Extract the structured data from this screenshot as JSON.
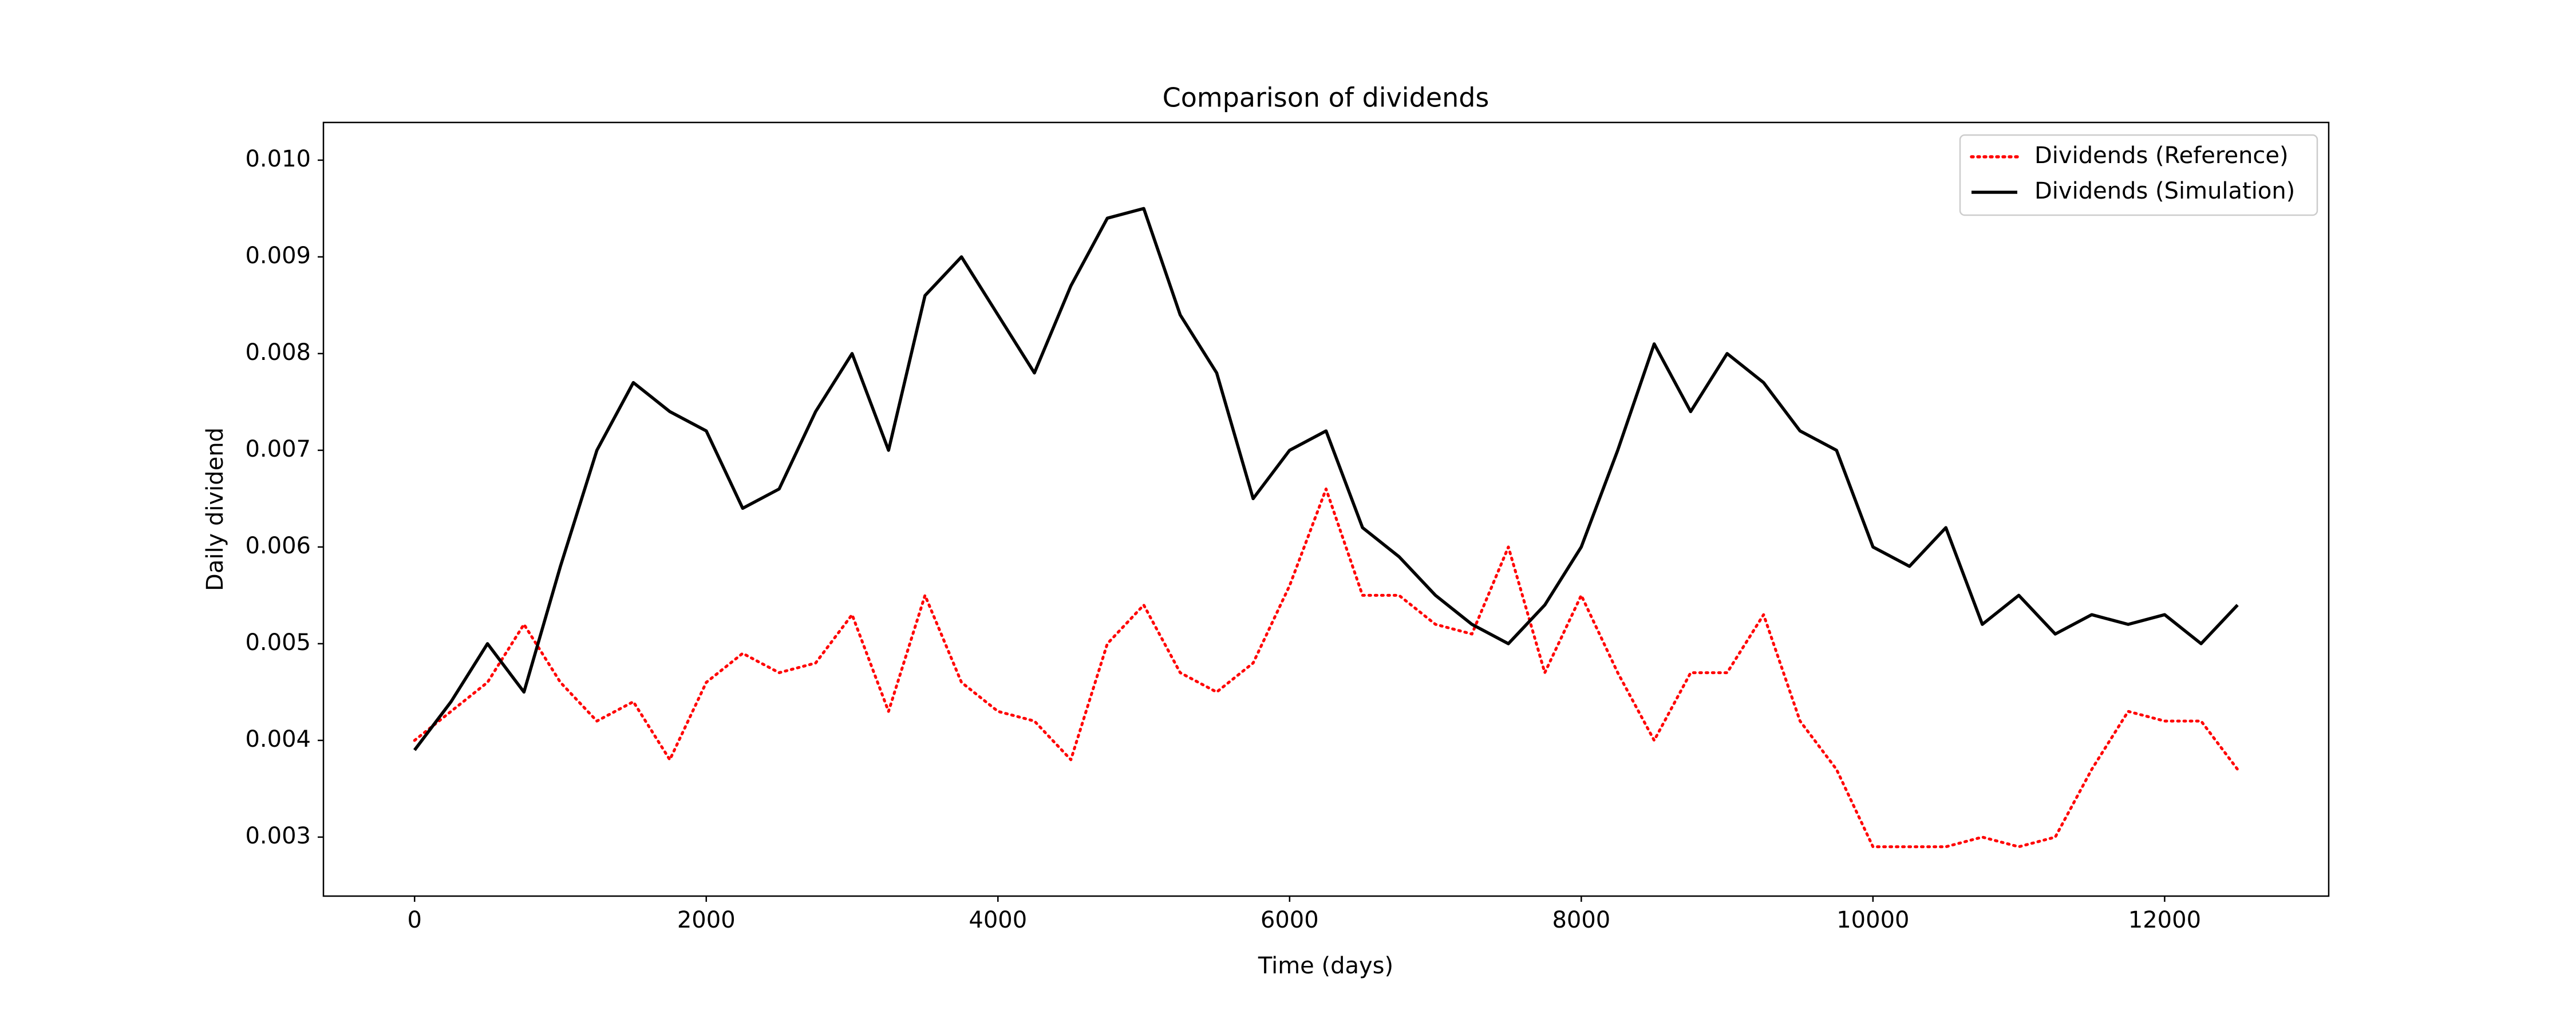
{
  "chart_data": {
    "type": "line",
    "title": "Comparison of dividends",
    "xlabel": "Time (days)",
    "ylabel": "Daily dividend",
    "x": [
      0,
      250,
      500,
      750,
      1000,
      1250,
      1500,
      1750,
      2000,
      2250,
      2500,
      2750,
      3000,
      3250,
      3500,
      3750,
      4000,
      4250,
      4500,
      4750,
      5000,
      5250,
      5500,
      5750,
      6000,
      6250,
      6500,
      6750,
      7000,
      7250,
      7500,
      7750,
      8000,
      8250,
      8500,
      8750,
      9000,
      9250,
      9500,
      9750,
      10000,
      10250,
      10500,
      10750,
      11000,
      11250,
      11500,
      11750,
      12000,
      12250,
      12500
    ],
    "series": [
      {
        "name": "Dividends (Reference)",
        "color": "#ff0000",
        "linestyle": "dotted",
        "values": [
          0.004,
          0.0043,
          0.0046,
          0.0052,
          0.0046,
          0.0042,
          0.0044,
          0.0038,
          0.0046,
          0.0049,
          0.0047,
          0.0048,
          0.0053,
          0.0043,
          0.0055,
          0.0046,
          0.0043,
          0.0042,
          0.0038,
          0.005,
          0.0054,
          0.0047,
          0.0045,
          0.0048,
          0.0056,
          0.0066,
          0.0055,
          0.0055,
          0.0052,
          0.0051,
          0.006,
          0.0047,
          0.0055,
          0.0047,
          0.004,
          0.0047,
          0.0047,
          0.0053,
          0.0042,
          0.0037,
          0.0029,
          0.0029,
          0.0029,
          0.003,
          0.0029,
          0.003,
          0.0037,
          0.0043,
          0.0042,
          0.0042,
          0.0037
        ]
      },
      {
        "name": "Dividends (Simulation)",
        "color": "#000000",
        "linestyle": "solid",
        "values": [
          0.0039,
          0.0044,
          0.005,
          0.0045,
          0.0058,
          0.007,
          0.0077,
          0.0074,
          0.0072,
          0.0064,
          0.0066,
          0.0074,
          0.008,
          0.007,
          0.0086,
          0.009,
          0.0084,
          0.0078,
          0.0087,
          0.0094,
          0.0095,
          0.0084,
          0.0078,
          0.0065,
          0.007,
          0.0072,
          0.0062,
          0.0059,
          0.0055,
          0.0052,
          0.005,
          0.0054,
          0.006,
          0.007,
          0.0081,
          0.0074,
          0.008,
          0.0077,
          0.0072,
          0.007,
          0.006,
          0.0058,
          0.0062,
          0.0052,
          0.0055,
          0.0051,
          0.0053,
          0.0052,
          0.0053,
          0.005,
          0.0054
        ]
      }
    ],
    "xlim": [
      -625,
      13125
    ],
    "xticks": [
      0,
      2000,
      4000,
      6000,
      8000,
      10000,
      12000
    ],
    "ylim": [
      0.00239,
      0.01039
    ],
    "yticks": [
      0.003,
      0.004,
      0.005,
      0.006,
      0.007,
      0.008,
      0.009,
      {
        "value": 0.01,
        "label": "0.010"
      }
    ],
    "legend": "upper right"
  }
}
